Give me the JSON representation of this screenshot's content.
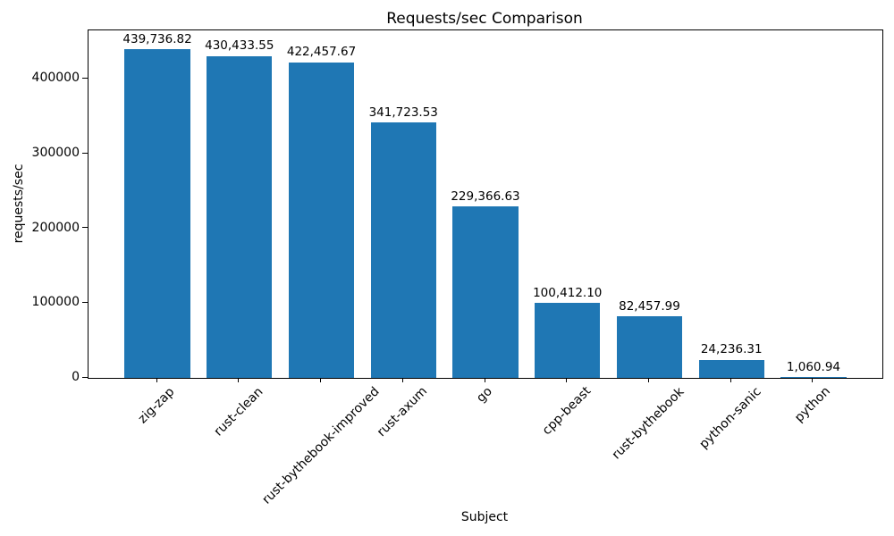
{
  "chart_data": {
    "type": "bar",
    "title": "Requests/sec Comparison",
    "xlabel": "Subject",
    "ylabel": "requests/sec",
    "categories": [
      "zig-zap",
      "rust-clean",
      "rust-bythebook-improved",
      "rust-axum",
      "go",
      "cpp-beast",
      "rust-bythebook",
      "python-sanic",
      "python"
    ],
    "values": [
      439736.82,
      430433.55,
      422457.67,
      341723.53,
      229366.63,
      100412.1,
      82457.99,
      24236.31,
      1060.94
    ],
    "value_labels": [
      "439,736.82",
      "430,433.55",
      "422,457.67",
      "341,723.53",
      "229,366.63",
      "100,412.10",
      "82,457.99",
      "24,236.31",
      "1,060.94"
    ],
    "yticks": [
      0,
      100000,
      200000,
      300000,
      400000
    ],
    "ytick_labels": [
      "0",
      "100000",
      "200000",
      "300000",
      "400000"
    ],
    "ylim": [
      0,
      465000
    ],
    "bar_color": "#1f77b4",
    "grid": false,
    "legend_position": "none",
    "x_tick_rotation_deg": 45
  }
}
